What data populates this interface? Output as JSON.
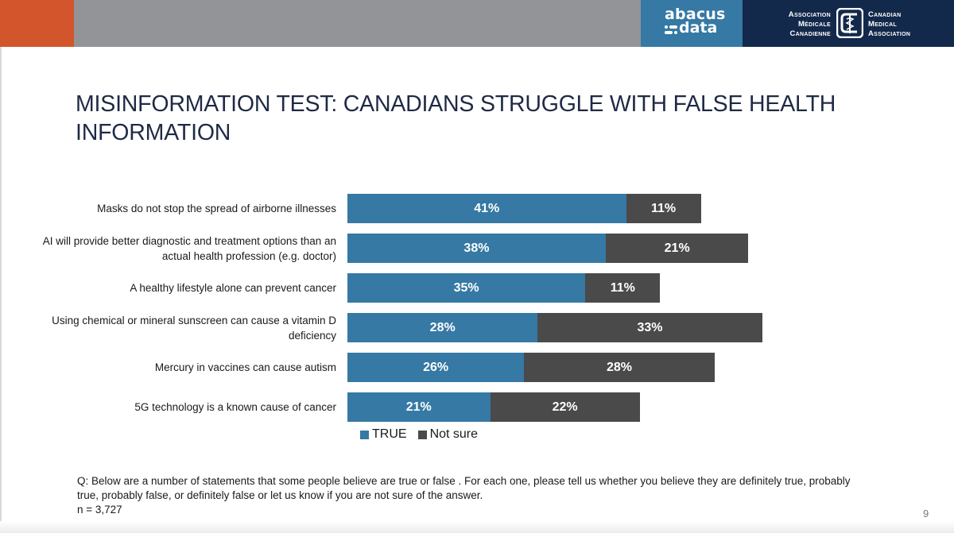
{
  "header": {
    "abacus_line1": "abacus",
    "abacus_line2": "data",
    "cma_fr": [
      "Association",
      "Médicale",
      "Canadienne"
    ],
    "cma_en": [
      "Canadian",
      "Medical",
      "Association"
    ]
  },
  "title": "MISINFORMATION TEST: CANADIANS STRUGGLE WITH FALSE HEALTH INFORMATION",
  "colors": {
    "true": "#3579a4",
    "not_sure": "#4a4a4a",
    "accent": "#d2552b",
    "navy": "#13294b"
  },
  "chart_data": {
    "type": "bar",
    "orientation": "horizontal",
    "stacked": true,
    "categories": [
      "Masks do not stop the spread of airborne illnesses",
      "AI will provide better diagnostic and treatment options than an actual health profession (e.g.  doctor)",
      "A healthy lifestyle alone can prevent cancer",
      "Using chemical or mineral sunscreen can cause a vitamin D deficiency",
      "Mercury in vaccines can cause autism",
      "5G technology is a known cause of cancer"
    ],
    "series": [
      {
        "name": "TRUE",
        "values": [
          41,
          38,
          35,
          28,
          26,
          21
        ]
      },
      {
        "name": "Not sure",
        "values": [
          11,
          21,
          11,
          33,
          28,
          22
        ]
      }
    ],
    "value_format": "%",
    "legend_position": "bottom-left"
  },
  "footnote": "Q: Below are a number of statements that some people believe are true or false . For each one, please tell us whether you believe they are definitely true, probably true, probably false, or definitely false or let us know if you are not sure of the answer.",
  "sample": "n = 3,727",
  "page_number": "9"
}
